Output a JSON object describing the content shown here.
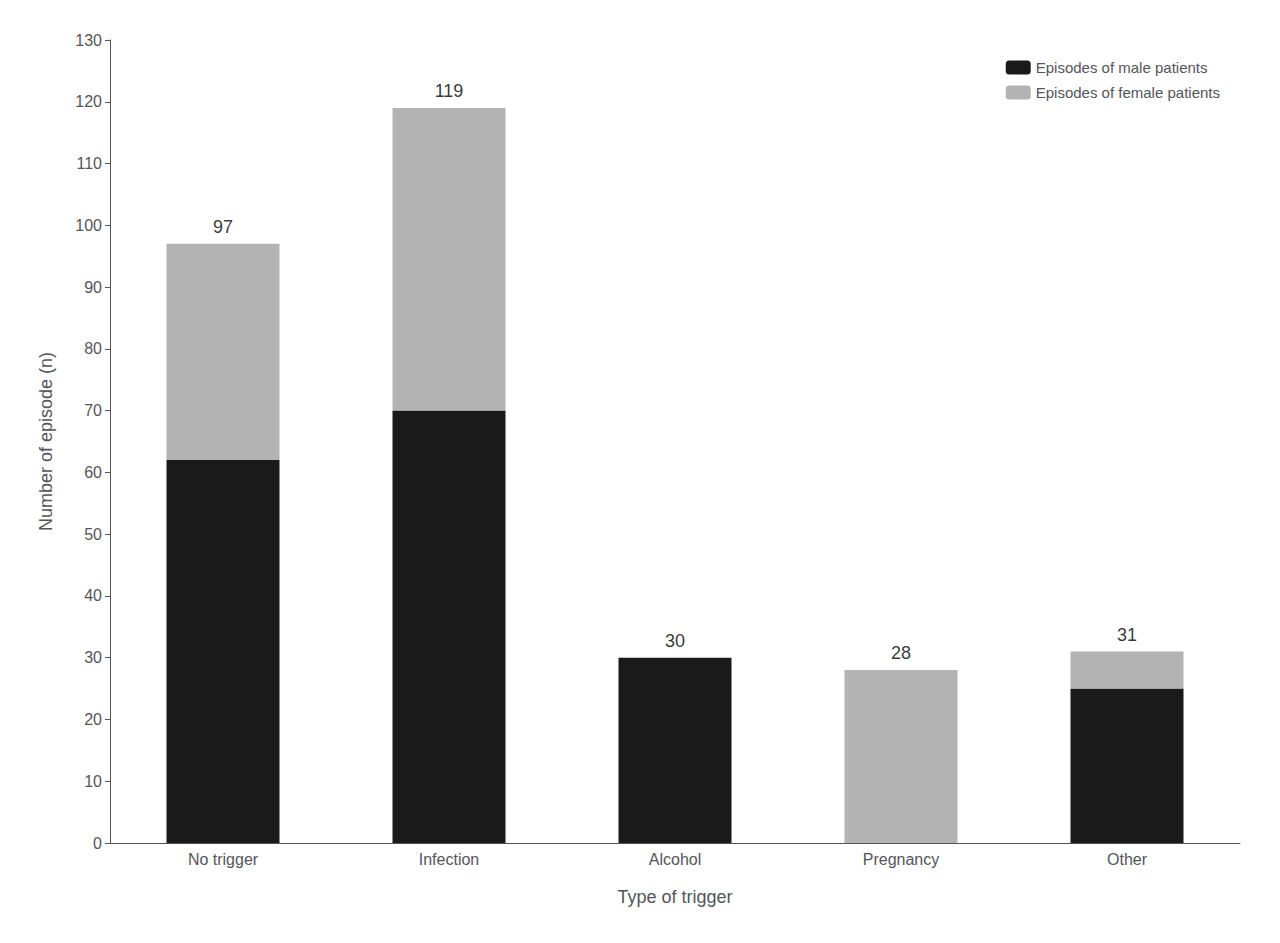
{
  "chart_data": {
    "type": "bar",
    "stacked": true,
    "categories": [
      "No trigger",
      "Infection",
      "Alcohol",
      "Pregnancy",
      "Other"
    ],
    "series": [
      {
        "name": "Episodes of male patients",
        "color": "#1a1a1a",
        "values": [
          62,
          70,
          30,
          0,
          25
        ]
      },
      {
        "name": "Episodes of female patients",
        "color": "#b3b3b3",
        "values": [
          35,
          49,
          0,
          28,
          6
        ]
      }
    ],
    "totals": [
      97,
      119,
      30,
      28,
      31
    ],
    "xlabel": "Type of trigger",
    "ylabel": "Number of episode (n)",
    "ylim": [
      0,
      130
    ],
    "yticks": [
      0,
      10,
      20,
      30,
      40,
      50,
      60,
      70,
      80,
      90,
      100,
      110,
      120,
      130
    ],
    "grid": false,
    "legend": "upper right"
  }
}
